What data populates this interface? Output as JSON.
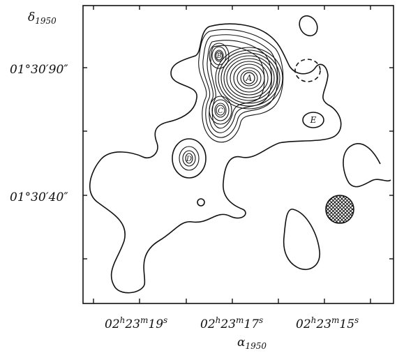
{
  "axes": {
    "y_title": "δ",
    "y_title_sub": "1950",
    "x_title": "α",
    "x_title_sub": "1950",
    "y_tick_labels": [
      "01°30′90″",
      "01°30′40″"
    ],
    "x_tick_labels": [
      {
        "h": "02",
        "m": "23",
        "s": "19"
      },
      {
        "h": "02",
        "m": "23",
        "s": "17"
      },
      {
        "h": "02",
        "m": "23",
        "s": "15"
      }
    ]
  },
  "sources": [
    {
      "id": "A"
    },
    {
      "id": "B"
    },
    {
      "id": "C"
    },
    {
      "id": "D"
    },
    {
      "id": "E"
    }
  ],
  "features": {
    "dashed_contour": "negative-contour",
    "hatched_ellipse": "beam"
  }
}
